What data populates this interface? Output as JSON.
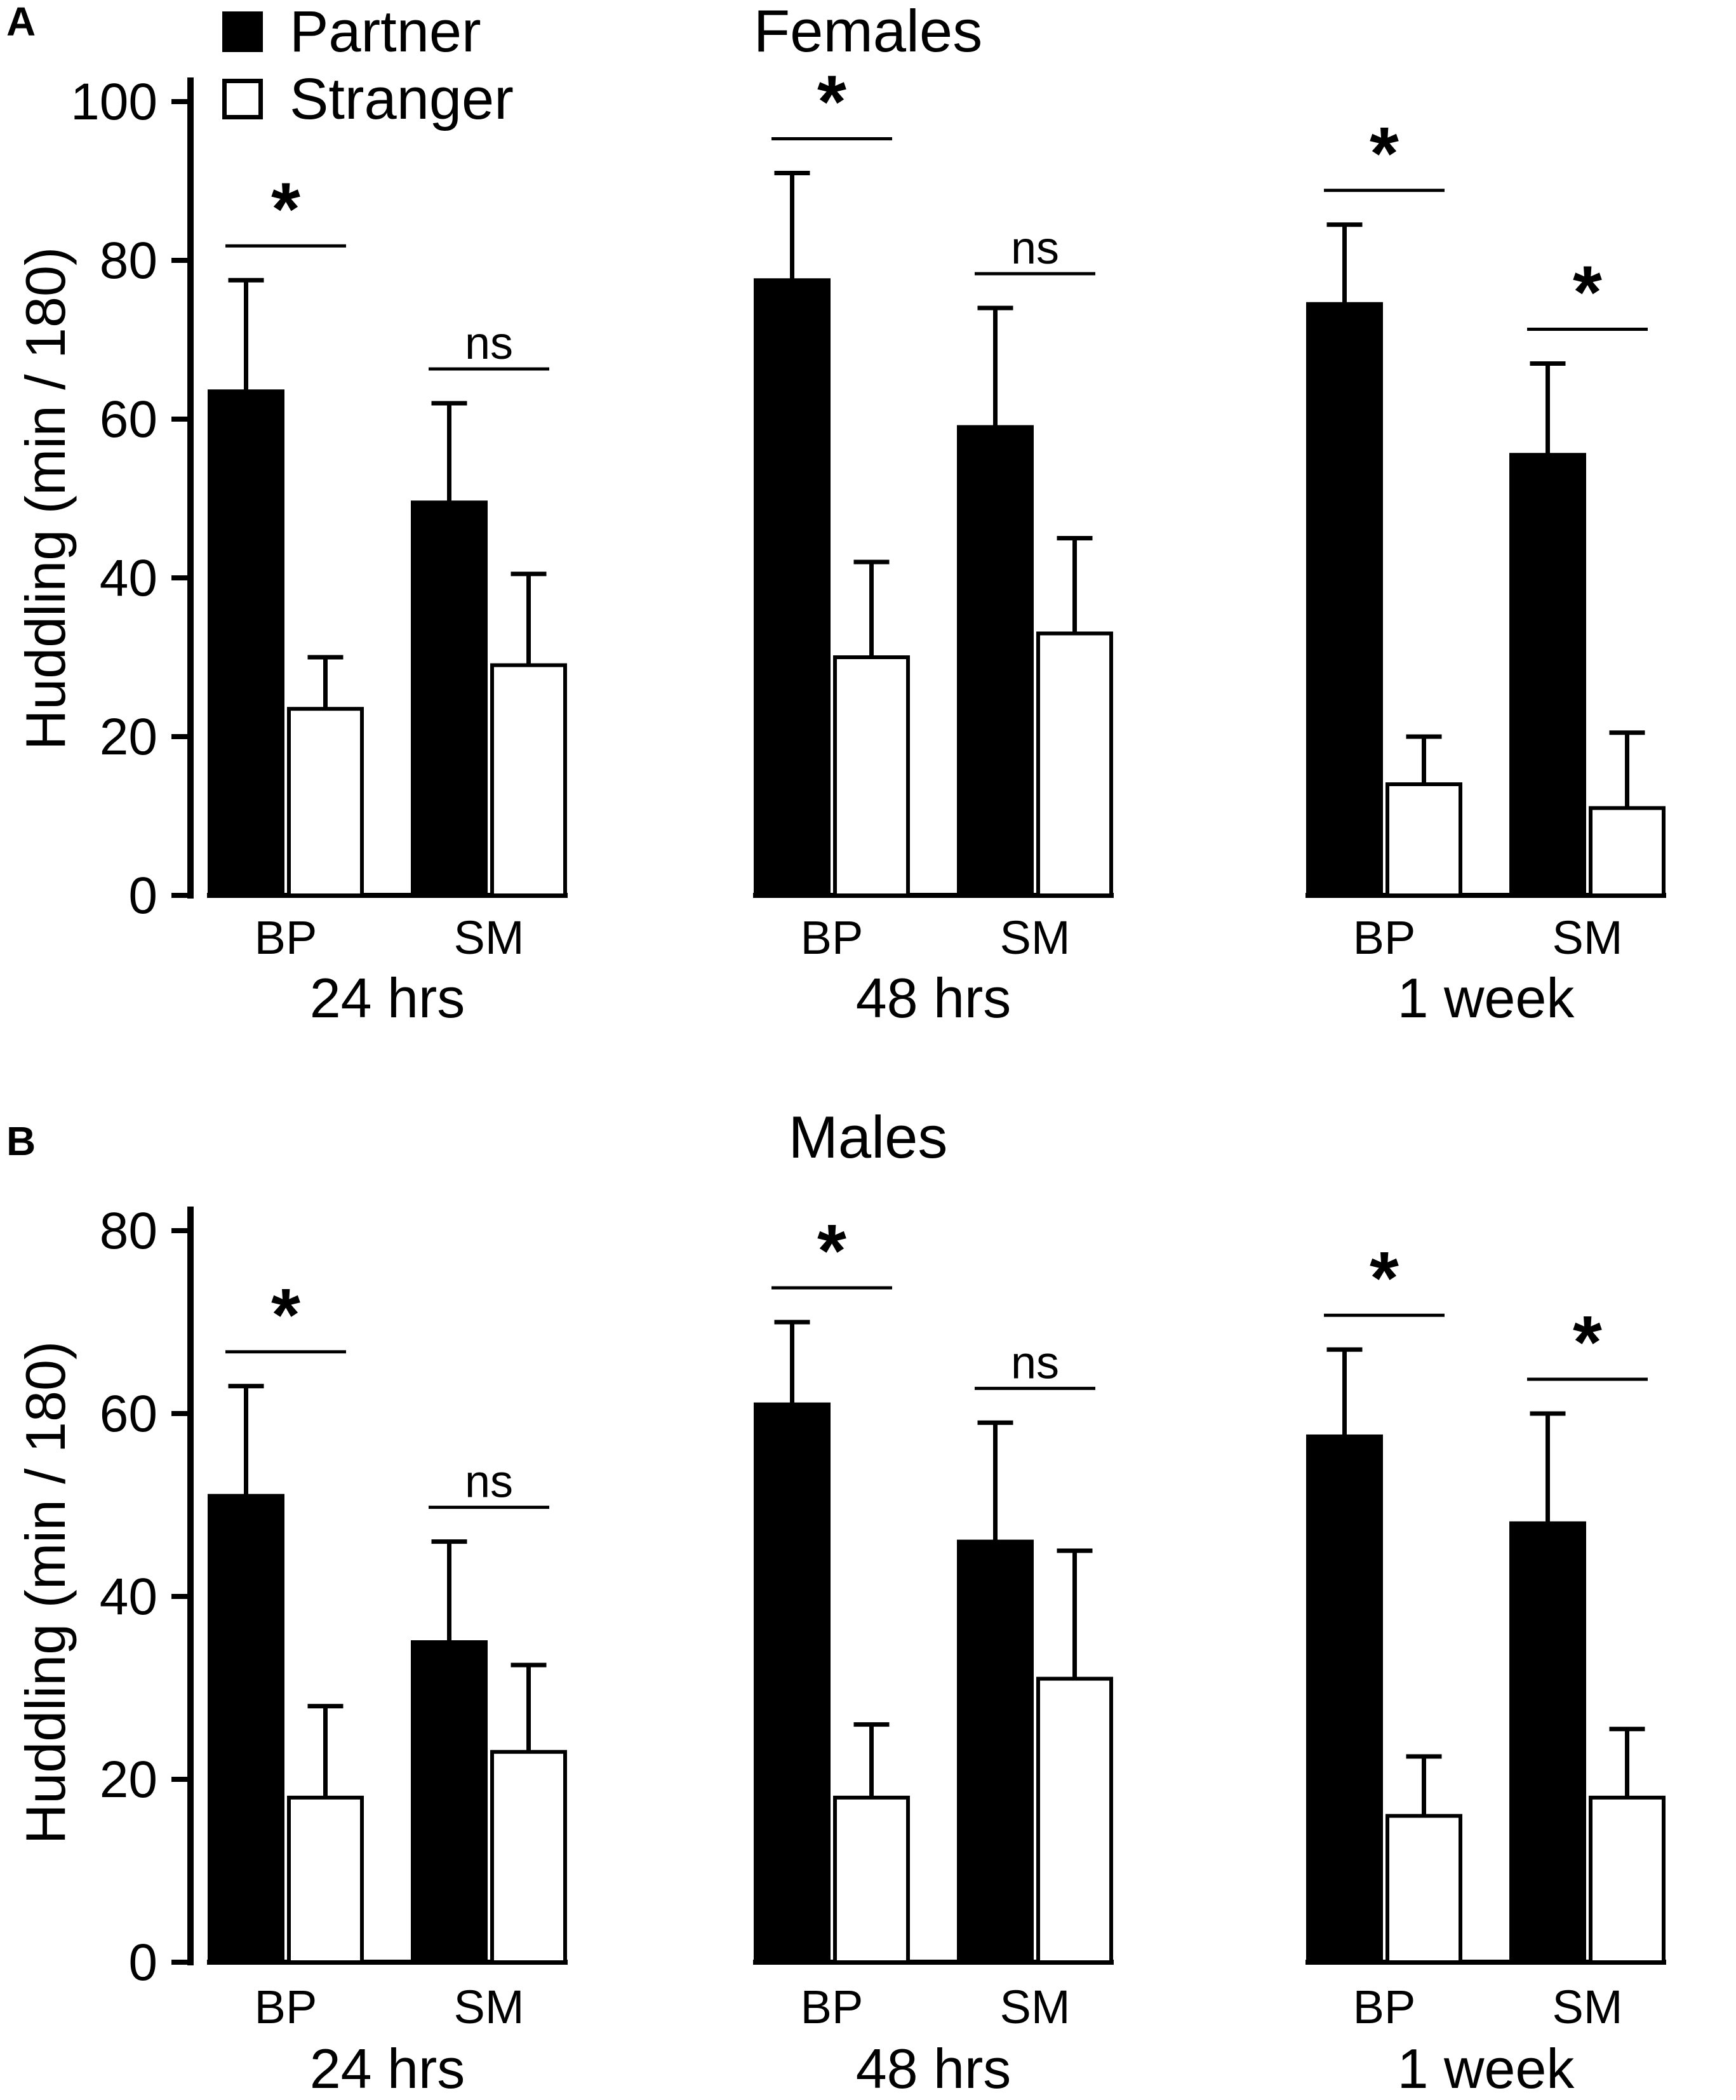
{
  "legend": {
    "items": [
      {
        "label": "Partner",
        "fill": "#000000"
      },
      {
        "label": "Stranger",
        "fill": "#ffffff"
      }
    ]
  },
  "chart_data": [
    {
      "type": "bar",
      "panel_label": "A",
      "title": "Females",
      "ylabel": "Huddling (min / 180)",
      "ylim": [
        0,
        100
      ],
      "yticks": [
        0,
        20,
        40,
        60,
        80,
        100
      ],
      "groups": [
        "24 hrs",
        "48 hrs",
        "1 week"
      ],
      "subgroups": [
        "BP",
        "SM"
      ],
      "series": [
        {
          "name": "Partner",
          "fill": "#000000",
          "values": [
            [
              63.5,
              49.5
            ],
            [
              77.5,
              59.0
            ],
            [
              74.5,
              55.5
            ]
          ],
          "errors": [
            [
              14.0,
              12.5
            ],
            [
              13.5,
              15.0
            ],
            [
              10.0,
              11.5
            ]
          ]
        },
        {
          "name": "Stranger",
          "fill": "#ffffff",
          "values": [
            [
              23.5,
              29.0
            ],
            [
              30.0,
              33.0
            ],
            [
              14.0,
              11.0
            ]
          ],
          "errors": [
            [
              6.5,
              11.5
            ],
            [
              12.0,
              12.0
            ],
            [
              6.0,
              9.5
            ]
          ]
        }
      ],
      "significance": [
        [
          "*",
          "ns"
        ],
        [
          "*",
          "ns"
        ],
        [
          "*",
          "*"
        ]
      ]
    },
    {
      "type": "bar",
      "panel_label": "B",
      "title": "Males",
      "ylabel": "Huddling (min / 180)",
      "ylim": [
        0,
        80
      ],
      "yticks": [
        0,
        20,
        40,
        60,
        80
      ],
      "groups": [
        "24 hrs",
        "48 hrs",
        "1 week"
      ],
      "subgroups": [
        "BP",
        "SM"
      ],
      "series": [
        {
          "name": "Partner",
          "fill": "#000000",
          "values": [
            [
              51.0,
              35.0
            ],
            [
              61.0,
              46.0
            ],
            [
              57.5,
              48.0
            ]
          ],
          "errors": [
            [
              12.0,
              11.0
            ],
            [
              9.0,
              13.0
            ],
            [
              9.5,
              12.0
            ]
          ]
        },
        {
          "name": "Stranger",
          "fill": "#ffffff",
          "values": [
            [
              18.0,
              23.0
            ],
            [
              18.0,
              31.0
            ],
            [
              16.0,
              18.0
            ]
          ],
          "errors": [
            [
              10.0,
              9.5
            ],
            [
              8.0,
              14.0
            ],
            [
              6.5,
              7.5
            ]
          ]
        }
      ],
      "significance": [
        [
          "*",
          "ns"
        ],
        [
          "*",
          "ns"
        ],
        [
          "*",
          "*"
        ]
      ]
    }
  ]
}
